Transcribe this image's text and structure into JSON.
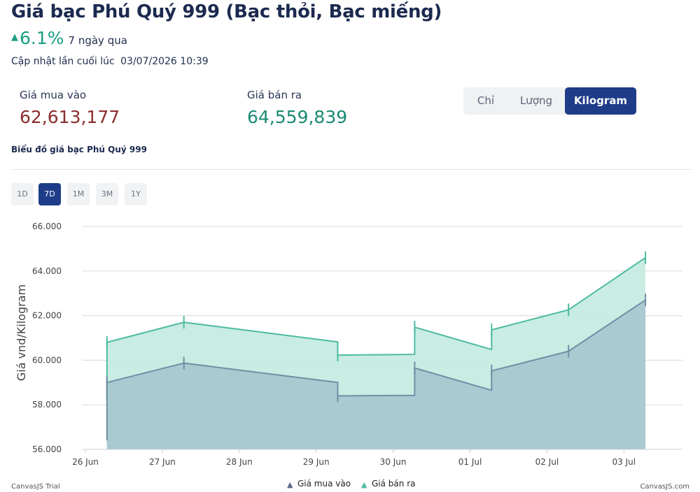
{
  "header": {
    "title": "Giá bạc Phú Quý 999 (Bạc thỏi, Bạc miếng)",
    "change_arrow": "▲",
    "change_value": "6.1%",
    "change_period": "7 ngày qua",
    "updated_label": "Cập nhật lần cuối lúc",
    "updated_time": "03/07/2026 10:39"
  },
  "prices": {
    "buy_label": "Giá mua vào",
    "buy_value": "62,613,177",
    "sell_label": "Giá bán ra",
    "sell_value": "64,559,839"
  },
  "unit_tabs": [
    "Chỉ",
    "Lượng",
    "Kilogram"
  ],
  "active_unit": "Kilogram",
  "chart_title": "Biểu đồ giá bạc Phú Quý 999",
  "range_buttons": [
    "1D",
    "7D",
    "1M",
    "3M",
    "1Y"
  ],
  "active_range": "7D",
  "credits": {
    "left": "CanvasJS Trial",
    "right": "CanvasJS.com"
  },
  "colors": {
    "buy": "#6f8fa6",
    "buy_fill": "#a8c8cf",
    "sell": "#4dbba0",
    "sell_fill": "#c6ebe2",
    "accent": "#1f3c88"
  },
  "chart_data": {
    "type": "area",
    "ylabel": "Giá vnd/Kilogram",
    "ylim": [
      56000,
      66000
    ],
    "yticks": [
      "56.000",
      "58.000",
      "60.000",
      "62.000",
      "64.000",
      "66.000"
    ],
    "xticks": [
      "26 Jun",
      "27 Jun",
      "28 Jun",
      "29 Jun",
      "30 Jun",
      "01 Jul",
      "02 Jul",
      "03 Jul"
    ],
    "x": [
      0.28,
      1.28,
      3.28,
      4.28,
      5.28,
      6.28,
      7.28
    ],
    "series": [
      {
        "name": "Giá mua vào",
        "marker": "▲",
        "color": "#6f8fa6",
        "fill": "#a8c8cf",
        "values": [
          {
            "start": 56400,
            "end": 59000
          },
          {
            "start": 59870,
            "end": 59870
          },
          {
            "start": 59000,
            "end": 58400
          },
          {
            "start": 58420,
            "end": 59650
          },
          {
            "start": 58650,
            "end": 59520
          },
          {
            "start": 60400,
            "end": 60400
          },
          {
            "start": 62700,
            "end": 62700
          }
        ]
      },
      {
        "name": "Giá bán ra",
        "marker": "▲",
        "color": "#4dbba0",
        "fill": "#c6ebe2",
        "values": [
          {
            "start": 58200,
            "end": 60800
          },
          {
            "start": 61700,
            "end": 61700
          },
          {
            "start": 60820,
            "end": 60230
          },
          {
            "start": 60260,
            "end": 61480
          },
          {
            "start": 60480,
            "end": 61360
          },
          {
            "start": 62260,
            "end": 62260
          },
          {
            "start": 64600,
            "end": 64600
          }
        ]
      }
    ],
    "legend_position": "bottom-center",
    "grid": true
  }
}
